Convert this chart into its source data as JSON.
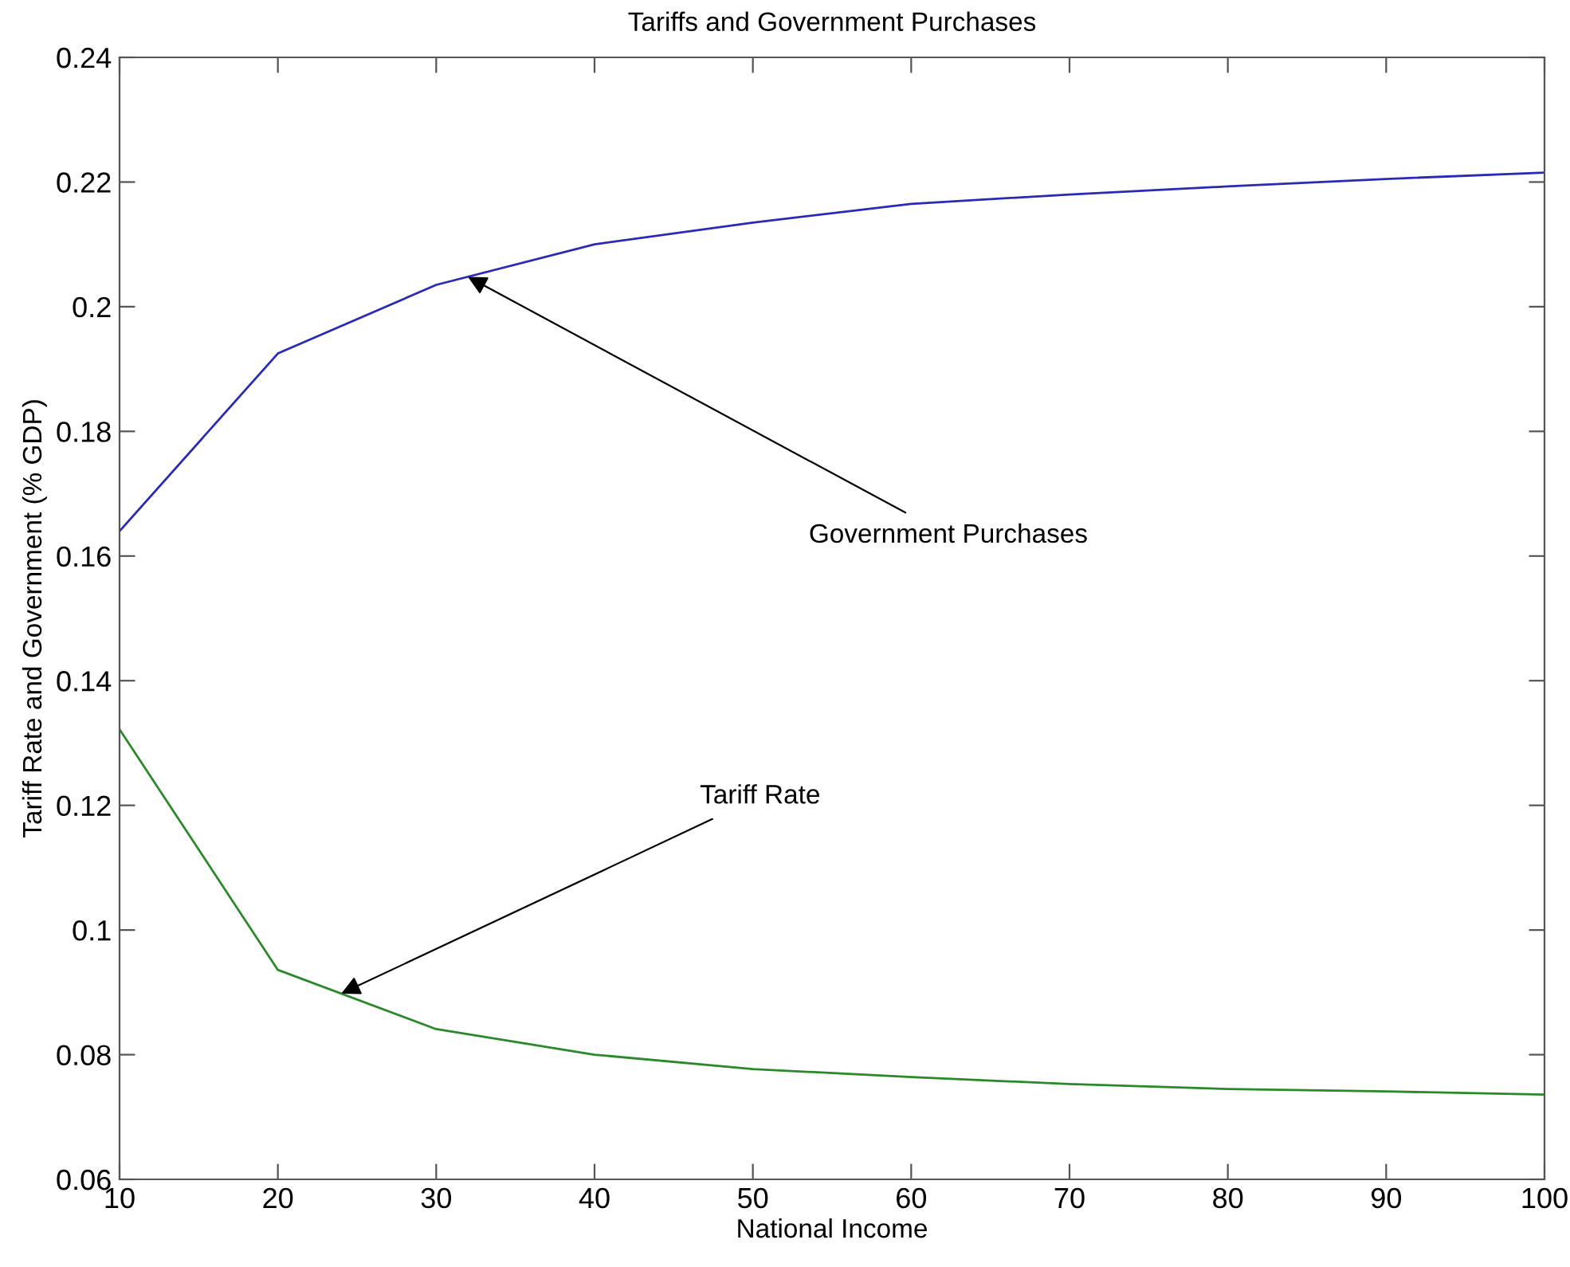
{
  "chart_data": {
    "type": "line",
    "title": "Tariffs and Government Purchases",
    "xlabel": "National Income",
    "ylabel": "Tariff Rate and Government (% GDP)",
    "x": [
      10,
      20,
      30,
      40,
      50,
      60,
      70,
      80,
      90,
      100
    ],
    "series": [
      {
        "color": "#2a2ab8",
        "values": [
          0.164,
          0.1925,
          0.2035,
          0.21,
          0.2135,
          0.2165,
          0.218,
          0.2193,
          0.2205,
          0.2215
        ]
      },
      {
        "color": "#2a8a2a",
        "values": [
          0.1322,
          0.0936,
          0.0841,
          0.08,
          0.0777,
          0.0764,
          0.0753,
          0.0745,
          0.0741,
          0.0736
        ]
      }
    ],
    "annotations": [
      {
        "text": "Government Purchases",
        "x": 32,
        "y": 0.2048
      },
      {
        "text": "Tariff Rate",
        "x": 24,
        "y": 0.0898
      }
    ],
    "xlim": [
      10,
      100
    ],
    "xticks": [
      10,
      20,
      30,
      40,
      50,
      60,
      70,
      80,
      90,
      100
    ],
    "ylim": [
      0.06,
      0.24
    ],
    "yticks": [
      0.06,
      0.08,
      {
        "value": 0.1,
        "label": "0.1"
      },
      0.12,
      0.14,
      0.16,
      0.18,
      {
        "value": 0.2,
        "label": "0.2"
      },
      0.22,
      0.24
    ],
    "grid": false,
    "legend": false,
    "marker": "none",
    "line_style": "solid"
  }
}
